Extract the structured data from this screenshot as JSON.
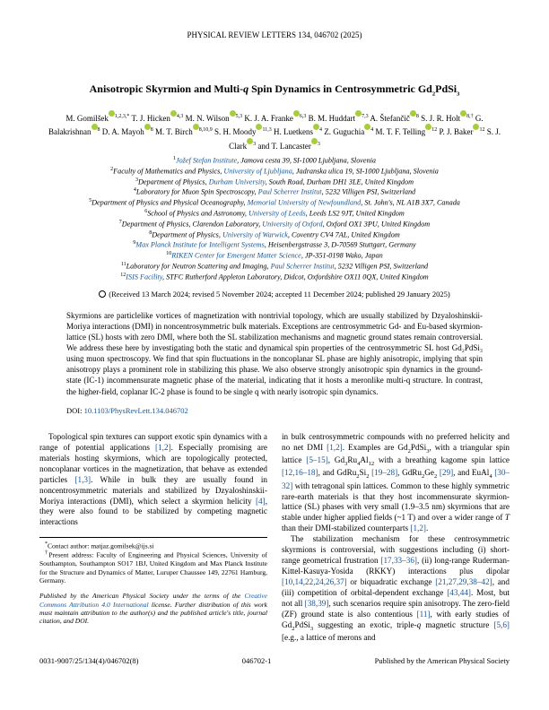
{
  "journal_header": "PHYSICAL REVIEW LETTERS 134, 046702 (2025)",
  "title_html": "Anisotropic Skyrmion and Multi-<i>q</i> Spin Dynamics in Centrosymmetric Gd<sub>2</sub>PdSi<sub>3</sub>",
  "authors": [
    {
      "name": "M. Gomilšek",
      "aff": "1,2,3,*",
      "orcid": true
    },
    {
      "name": "T. J. Hicken",
      "aff": "4,3",
      "orcid": true
    },
    {
      "name": "M. N. Wilson",
      "aff": "5,3",
      "orcid": true
    },
    {
      "name": "K. J. A. Franke",
      "aff": "6,3",
      "orcid": true
    },
    {
      "name": "B. M. Huddart",
      "aff": "7,3",
      "orcid": true
    },
    {
      "name": "A. Štefančič",
      "aff": "8",
      "orcid": true
    },
    {
      "name": "S. J. R. Holt",
      "aff": "8,†",
      "orcid": true
    },
    {
      "name": "G. Balakrishnan",
      "aff": "8",
      "orcid": true
    },
    {
      "name": "D. A. Mayoh",
      "aff": "8",
      "orcid": true
    },
    {
      "name": "M. T. Birch",
      "aff": "8,10,9",
      "orcid": true
    },
    {
      "name": "S. H. Moody",
      "aff": "11,3",
      "orcid": true
    },
    {
      "name": "H. Luetkens",
      "aff": "4",
      "orcid": true
    },
    {
      "name": "Z. Guguchia",
      "aff": "4",
      "orcid": true
    },
    {
      "name": "M. T. F. Telling",
      "aff": "12",
      "orcid": true
    },
    {
      "name": "P. J. Baker",
      "aff": "12",
      "orcid": true
    },
    {
      "name": "S. J. Clark",
      "aff": "3",
      "orcid": true
    },
    {
      "name": "T. Lancaster",
      "aff": "3",
      "orcid": true
    }
  ],
  "affiliations": [
    {
      "num": "1",
      "text": "Jožef Stefan Institute, Jamova cesta 39, SI-1000 Ljubljana, Slovenia",
      "link": "Jožef Stefan Institute"
    },
    {
      "num": "2",
      "text": "Faculty of Mathematics and Physics, University of Ljubljana, Jadranska ulica 19, SI-1000 Ljubljana, Slovenia",
      "link": "University of Ljubljana"
    },
    {
      "num": "3",
      "text": "Department of Physics, Durham University, South Road, Durham DH1 3LE, United Kingdom",
      "link": "Durham University"
    },
    {
      "num": "4",
      "text": "Laboratory for Muon Spin Spectroscopy, Paul Scherrer Institut, 5232 Villigen PSI, Switzerland",
      "link": "Paul Scherrer Institut"
    },
    {
      "num": "5",
      "text": "Department of Physics and Physical Oceanography, Memorial University of Newfoundland, St. John's, NL A1B 3X7, Canada",
      "link": "Memorial University of Newfoundland"
    },
    {
      "num": "6",
      "text": "School of Physics and Astronomy, University of Leeds, Leeds LS2 9JT, United Kingdom",
      "link": "University of Leeds"
    },
    {
      "num": "7",
      "text": "Department of Physics, Clarendon Laboratory, University of Oxford, Oxford OX1 3PU, United Kingdom",
      "link": "University of Oxford"
    },
    {
      "num": "8",
      "text": "Department of Physics, University of Warwick, Coventry CV4 7AL, United Kingdom",
      "link": "University of Warwick"
    },
    {
      "num": "9",
      "text": "Max Planck Institute for Intelligent Systems, Heisenbergstrasse 3, D-70569 Stuttgart, Germany",
      "link": "Max Planck Institute for Intelligent Systems"
    },
    {
      "num": "10",
      "text": "RIKEN Center for Emergent Matter Science, JP-351-0198 Wako, Japan",
      "link": "RIKEN Center for Emergent Matter Science"
    },
    {
      "num": "11",
      "text": "Laboratory for Neutron Scattering and Imaging, Paul Scherrer Institut, 5232 Villigen PSI, Switzerland",
      "link": "Paul Scherrer Institut"
    },
    {
      "num": "12",
      "text": "ISIS Facility, STFC Rutherford Appleton Laboratory, Didcot, Oxfordshire OX11 0QX, United Kingdom",
      "link": "ISIS Facility"
    }
  ],
  "dates_text": "(Received 13 March 2024; revised 5 November 2024; accepted 11 December 2024; published 29 January 2025)",
  "abstract": "Skyrmions are particlelike vortices of magnetization with nontrivial topology, which are usually stabilized by Dzyaloshinskii-Moriya interactions (DMI) in noncentrosymmetric bulk materials. Exceptions are centrosymmetric Gd- and Eu-based skyrmion-lattice (SL) hosts with zero DMI, where both the SL stabilization mechanisms and magnetic ground states remain controversial. We address these here by investigating both the static and dynamical spin properties of the centrosymmetric SL host Gd₂PdSi₃ using muon spectroscopy. We find that spin fluctuations in the noncoplanar SL phase are highly anisotropic, implying that spin anisotropy plays a prominent role in stabilizing this phase. We also observe strongly anisotropic spin dynamics in the ground-state (IC-1) incommensurate magnetic phase of the material, indicating that it hosts a meronlike multi-q structure. In contrast, the higher-field, coplanar IC-2 phase is found to be single q with nearly isotropic spin dynamics.",
  "doi_label": "DOI:",
  "doi_link": "10.1103/PhysRevLett.134.046702",
  "col_left": {
    "p1_html": "Topological spin textures can support exotic spin dynamics with a range of potential applications <span class='cite'>[1,2]</span>. Especially promising are materials hosting skyrmions, which are topologically protected, noncoplanar vortices in the magnetization, that behave as extended particles <span class='cite'>[1,3]</span>. While in bulk they are usually found in noncentrosymmetric materials and stabilized by Dzyaloshinskii-Moriya interactions (DMI), which select a skyrmion helicity <span class='cite'>[4]</span>, they were also found to be stabilized by competing magnetic interactions",
    "fn1": "Contact author: matjaz.gomilsek@ijs.si",
    "fn2": "Present address: Faculty of Engineering and Physical Sciences, University of Southampton, Southampton SO17 1BJ, United Kingdom and Max Planck Institute for the Structure and Dynamics of Matter, Luruper Chaussee 149, 22761 Hamburg, Germany.",
    "license_html": "Published by the American Physical Society under the terms of the <span class='cite'>Creative Commons Attribution 4.0 International</span> license. Further distribution of this work must maintain attribution to the author(s) and the published article's title, journal citation, and DOI."
  },
  "col_right": {
    "p1_html": "in bulk centrosymmetric compounds with no preferred helicity and no net DMI <span class='cite'>[1,2]</span>. Examples are Gd<sub>2</sub>PdSi<sub>3</sub>, with a triangular spin lattice <span class='cite'>[5–15]</span>, Gd<sub>3</sub>Ru<sub>4</sub>Al<sub>12</sub> with a breathing kagome spin lattice <span class='cite'>[12,16–18]</span>, and GdRu<sub>2</sub>Si<sub>2</sub> <span class='cite'>[19–28]</span>, GdRu<sub>2</sub>Ge<sub>2</sub> <span class='cite'>[29]</span>, and EuAl<sub>4</sub> <span class='cite'>[30–32]</span> with tetragonal spin lattices. Common to these highly symmetric rare-earth materials is that they host incommensurate skyrmion-lattice (SL) phases with very small (1.9–3.5 nm) skyrmions that are stable under higher applied fields (~1 T) and over a wider range of <i>T</i> than their DMI-stabilized counterparts <span class='cite'>[1,2]</span>.",
    "p2_html": "The stabilization mechanism for these centrosymmetric skyrmions is controversial, with suggestions including (i)&nbsp;short-range geometrical frustration <span class='cite'>[17,33–36]</span>, (ii)&nbsp;long-range Ruderman-Kittel-Kasuya-Yosida (RKKY) interactions plus dipolar <span class='cite'>[10,14,22,24,26,37]</span> or biquadratic exchange <span class='cite'>[21,27,29,38–42]</span>, and (iii) competition of orbital-dependent exchange <span class='cite'>[43,44]</span>. Most, but not all <span class='cite'>[38,39]</span>, such scenarios require spin anisotropy. The zero-field (ZF) ground state is also contentious <span class='cite'>[11]</span>, with early studies of Gd<sub>2</sub>PdSi<sub>3</sub> suggesting an exotic, triple-<i>q</i> magnetic structure <span class='cite'>[5,6]</span> [e.g., a lattice of merons and"
  },
  "footer": {
    "left": "0031-9007/25/134(4)/046702(8)",
    "center": "046702-1",
    "right": "Published by the American Physical Society"
  },
  "colors": {
    "link": "#1a5490",
    "orcid": "#a6ce39",
    "text": "#000000",
    "bg": "#ffffff"
  }
}
